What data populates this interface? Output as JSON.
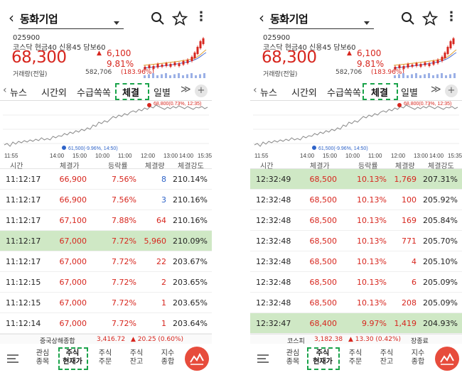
{
  "left": {
    "header": {
      "stock_name": "동화기업",
      "code": "025900",
      "tags": "코스닥 현금40 신용45 담보60",
      "price": "68,300",
      "change": "6,100",
      "change_rate": "9.81%",
      "volume_label": "거래량(전일)",
      "volume": "582,706",
      "volume_pct": "(183.96%)"
    },
    "tabs": [
      "뉴스",
      "시간외",
      "수급쏙쏙",
      "체결",
      "일별"
    ],
    "chart": {
      "high_label": "68,800(0.73%, 12:35)",
      "low_label": "61,500(-9.96%, 14:50)",
      "x_labels": [
        "11:55",
        "14:00",
        "15:00",
        "10:00",
        "11:00",
        "12:00",
        "13:00",
        "14:00",
        "15:35"
      ]
    },
    "table": {
      "headers": [
        "시간",
        "체결가",
        "등락률",
        "체결량",
        "체결강도"
      ],
      "rows": [
        {
          "time": "11:12:17",
          "price": "66,900",
          "rate": "7.56%",
          "vol": "8",
          "vol_dir": "down",
          "strength": "210.14%",
          "hl": false
        },
        {
          "time": "11:12:17",
          "price": "66,900",
          "rate": "7.56%",
          "vol": "3",
          "vol_dir": "down",
          "strength": "210.16%",
          "hl": false
        },
        {
          "time": "11:12:17",
          "price": "67,100",
          "rate": "7.88%",
          "vol": "64",
          "vol_dir": "up",
          "strength": "210.16%",
          "hl": false
        },
        {
          "time": "11:12:17",
          "price": "67,000",
          "rate": "7.72%",
          "vol": "5,960",
          "vol_dir": "up",
          "strength": "210.09%",
          "hl": true
        },
        {
          "time": "11:12:17",
          "price": "67,000",
          "rate": "7.72%",
          "vol": "22",
          "vol_dir": "up",
          "strength": "203.67%",
          "hl": false
        },
        {
          "time": "11:12:15",
          "price": "67,000",
          "rate": "7.72%",
          "vol": "2",
          "vol_dir": "up",
          "strength": "203.65%",
          "hl": false
        },
        {
          "time": "11:12:15",
          "price": "67,000",
          "rate": "7.72%",
          "vol": "1",
          "vol_dir": "up",
          "strength": "203.65%",
          "hl": false
        },
        {
          "time": "11:12:14",
          "price": "67,000",
          "rate": "7.72%",
          "vol": "1",
          "vol_dir": "up",
          "strength": "203.64%",
          "hl": false
        }
      ]
    },
    "index_strip": {
      "name": "중국상해종합",
      "value": "3,416.72",
      "change": "▲ 20.25 (0.60%)",
      "tail": ""
    },
    "nav": [
      "관심\n종목",
      "주식\n현재가",
      "주식\n주문",
      "주식\n잔고",
      "지수\n종합"
    ]
  },
  "right": {
    "header": {
      "stock_name": "동화기업",
      "code": "025900",
      "tags": "코스닥 현금40 신용45 담보60",
      "price": "68,300",
      "change": "6,100",
      "change_rate": "9.81%",
      "volume_label": "거래량(전일)",
      "volume": "582,706",
      "volume_pct": "(183.96%)"
    },
    "tabs": [
      "뉴스",
      "시간외",
      "수급쏙쏙",
      "체결",
      "일별"
    ],
    "chart": {
      "high_label": "68,800(0.73%, 12:35)",
      "low_label": "61,500(-9.96%, 14:50)",
      "x_labels": [
        "11:55",
        "14:00",
        "15:00",
        "10:00",
        "11:00",
        "12:00",
        "13:00",
        "14:00",
        "15:35"
      ]
    },
    "table": {
      "headers": [
        "시간",
        "체결가",
        "등락률",
        "체결량",
        "체결강도"
      ],
      "rows": [
        {
          "time": "12:32:49",
          "price": "68,500",
          "rate": "10.13%",
          "vol": "1,769",
          "vol_dir": "up",
          "strength": "207.31%",
          "hl": true
        },
        {
          "time": "12:32:48",
          "price": "68,500",
          "rate": "10.13%",
          "vol": "100",
          "vol_dir": "up",
          "strength": "205.92%",
          "hl": false
        },
        {
          "time": "12:32:48",
          "price": "68,500",
          "rate": "10.13%",
          "vol": "169",
          "vol_dir": "up",
          "strength": "205.84%",
          "hl": false
        },
        {
          "time": "12:32:48",
          "price": "68,500",
          "rate": "10.13%",
          "vol": "771",
          "vol_dir": "up",
          "strength": "205.70%",
          "hl": false
        },
        {
          "time": "12:32:48",
          "price": "68,500",
          "rate": "10.13%",
          "vol": "4",
          "vol_dir": "up",
          "strength": "205.10%",
          "hl": false
        },
        {
          "time": "12:32:48",
          "price": "68,500",
          "rate": "10.13%",
          "vol": "6",
          "vol_dir": "up",
          "strength": "205.09%",
          "hl": false
        },
        {
          "time": "12:32:48",
          "price": "68,500",
          "rate": "10.13%",
          "vol": "208",
          "vol_dir": "up",
          "strength": "205.09%",
          "hl": false
        },
        {
          "time": "12:32:47",
          "price": "68,400",
          "rate": "9.97%",
          "vol": "1,419",
          "vol_dir": "up",
          "strength": "204.93%",
          "hl": true
        }
      ]
    },
    "index_strip": {
      "name": "코스피",
      "value": "3,182.38",
      "change": "▲ 13.30 (0.42%)",
      "tail": "장종료"
    },
    "nav": [
      "관심\n종목",
      "주식\n현재가",
      "주식\n주문",
      "주식\n잔고",
      "지수\n종합"
    ]
  },
  "colors": {
    "up": "#d7261e",
    "down": "#2e63c8",
    "highlight": "#cfe8c5",
    "annotation": "#1aa34a"
  }
}
